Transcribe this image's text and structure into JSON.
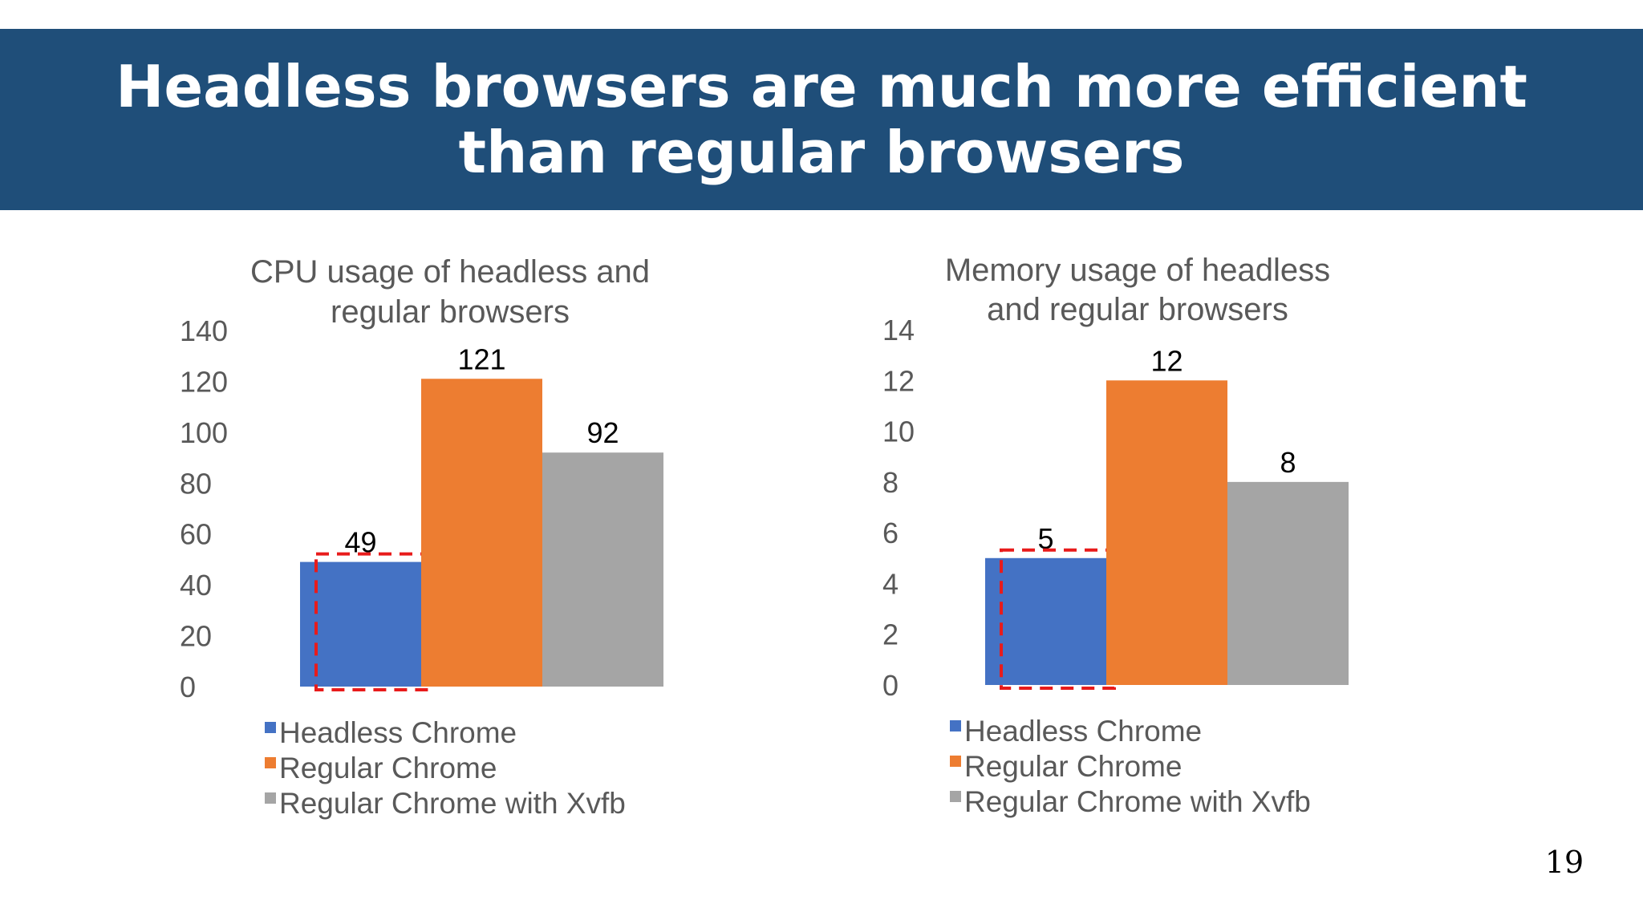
{
  "slide": {
    "title": "Headless browsers are much more efficient than regular browsers",
    "page_number": "19"
  },
  "colors": {
    "banner": "#1f4e79",
    "highlight_box": "#e81b1b",
    "axis_text": "#595959"
  },
  "chart_data": [
    {
      "type": "bar",
      "title": "CPU usage of headless and regular browsers",
      "title_lines": [
        "CPU usage of headless and",
        "regular browsers"
      ],
      "xlabel": "",
      "ylabel": "",
      "ylim": [
        0,
        140
      ],
      "yticks": [
        "140",
        "120",
        "100",
        "80",
        "60",
        "40",
        "20",
        "0"
      ],
      "grid": false,
      "legend_position": "bottom-left",
      "series": [
        {
          "name": "Headless Chrome",
          "color": "#4472c4",
          "value": 49,
          "label": "49"
        },
        {
          "name": "Regular Chrome",
          "color": "#ed7d31",
          "value": 121,
          "label": "121"
        },
        {
          "name": "Regular Chrome with Xvfb",
          "color": "#a5a5a5",
          "value": 92,
          "label": "92"
        }
      ],
      "highlighted_series": "Headless Chrome"
    },
    {
      "type": "bar",
      "title": "Memory usage of headless and regular browsers",
      "title_lines": [
        "Memory usage of headless",
        "and regular browsers"
      ],
      "xlabel": "",
      "ylabel": "",
      "ylim": [
        0,
        14
      ],
      "yticks": [
        "14",
        "12",
        "10",
        "8",
        "6",
        "4",
        "2",
        "0"
      ],
      "grid": false,
      "legend_position": "bottom-left",
      "series": [
        {
          "name": "Headless Chrome",
          "color": "#4472c4",
          "value": 5,
          "label": "5"
        },
        {
          "name": "Regular Chrome",
          "color": "#ed7d31",
          "value": 12,
          "label": "12"
        },
        {
          "name": "Regular Chrome with Xvfb",
          "color": "#a5a5a5",
          "value": 8,
          "label": "8"
        }
      ],
      "highlighted_series": "Headless Chrome"
    }
  ]
}
